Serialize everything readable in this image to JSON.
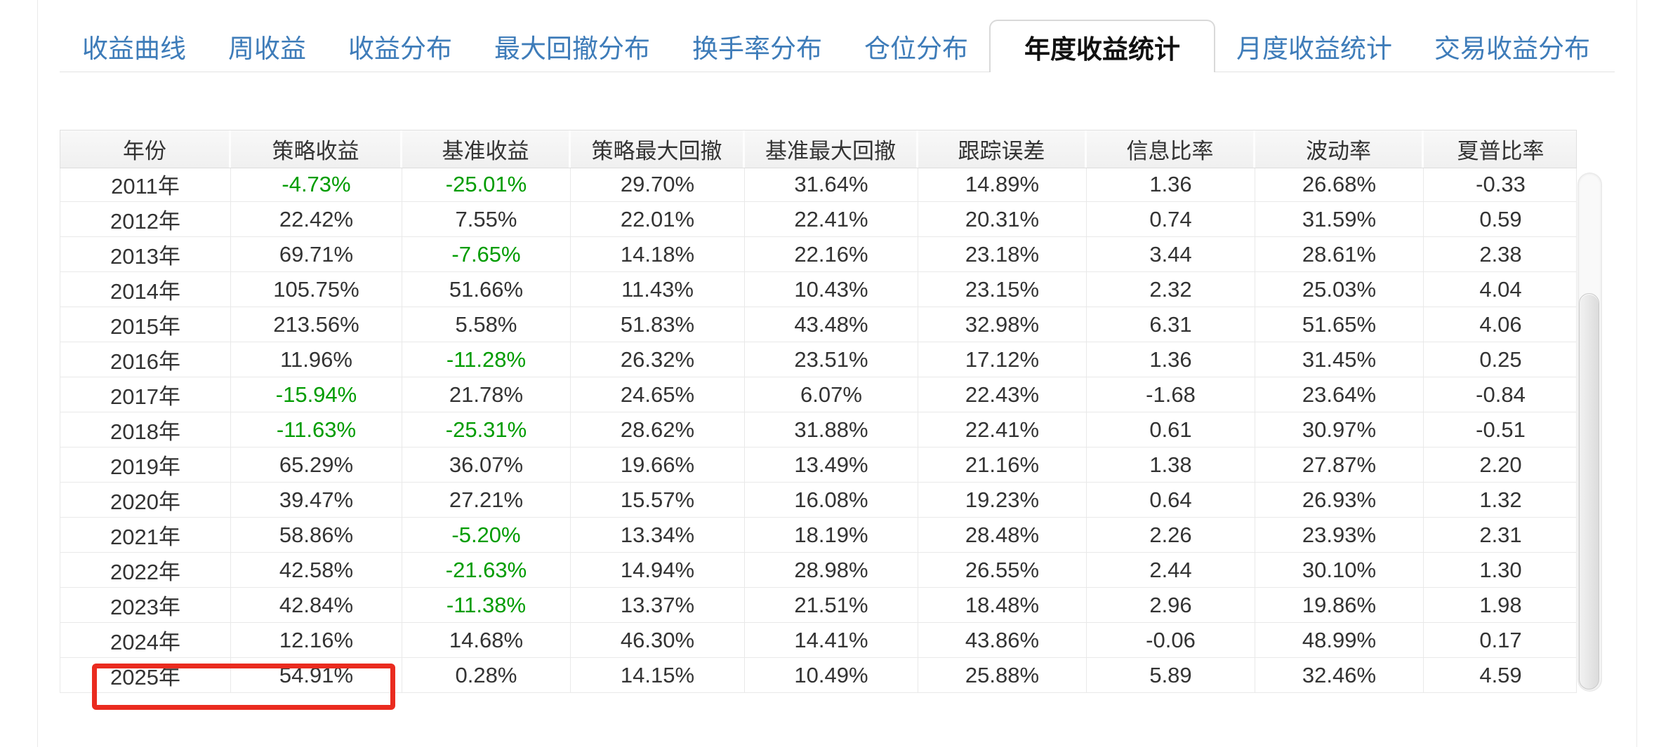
{
  "tabs": {
    "items": [
      {
        "label": "收益曲线",
        "active": false
      },
      {
        "label": "周收益",
        "active": false
      },
      {
        "label": "收益分布",
        "active": false
      },
      {
        "label": "最大回撤分布",
        "active": false
      },
      {
        "label": "换手率分布",
        "active": false
      },
      {
        "label": "仓位分布",
        "active": false
      },
      {
        "label": "年度收益统计",
        "active": true
      },
      {
        "label": "月度收益统计",
        "active": false
      },
      {
        "label": "交易收益分布",
        "active": false
      }
    ]
  },
  "table": {
    "columns": [
      "年份",
      "策略收益",
      "基准收益",
      "策略最大回撤",
      "基准最大回撤",
      "跟踪误差",
      "信息比率",
      "波动率",
      "夏普比率"
    ],
    "rows": [
      [
        "2011年",
        "-4.73%",
        "-25.01%",
        "29.70%",
        "31.64%",
        "14.89%",
        "1.36",
        "26.68%",
        "-0.33"
      ],
      [
        "2012年",
        "22.42%",
        "7.55%",
        "22.01%",
        "22.41%",
        "20.31%",
        "0.74",
        "31.59%",
        "0.59"
      ],
      [
        "2013年",
        "69.71%",
        "-7.65%",
        "14.18%",
        "22.16%",
        "23.18%",
        "3.44",
        "28.61%",
        "2.38"
      ],
      [
        "2014年",
        "105.75%",
        "51.66%",
        "11.43%",
        "10.43%",
        "23.15%",
        "2.32",
        "25.03%",
        "4.04"
      ],
      [
        "2015年",
        "213.56%",
        "5.58%",
        "51.83%",
        "43.48%",
        "32.98%",
        "6.31",
        "51.65%",
        "4.06"
      ],
      [
        "2016年",
        "11.96%",
        "-11.28%",
        "26.32%",
        "23.51%",
        "17.12%",
        "1.36",
        "31.45%",
        "0.25"
      ],
      [
        "2017年",
        "-15.94%",
        "21.78%",
        "24.65%",
        "6.07%",
        "22.43%",
        "-1.68",
        "23.64%",
        "-0.84"
      ],
      [
        "2018年",
        "-11.63%",
        "-25.31%",
        "28.62%",
        "31.88%",
        "22.41%",
        "0.61",
        "30.97%",
        "-0.51"
      ],
      [
        "2019年",
        "65.29%",
        "36.07%",
        "19.66%",
        "13.49%",
        "21.16%",
        "1.38",
        "27.87%",
        "2.20"
      ],
      [
        "2020年",
        "39.47%",
        "27.21%",
        "15.57%",
        "16.08%",
        "19.23%",
        "0.64",
        "26.93%",
        "1.32"
      ],
      [
        "2021年",
        "58.86%",
        "-5.20%",
        "13.34%",
        "18.19%",
        "28.48%",
        "2.26",
        "23.93%",
        "2.31"
      ],
      [
        "2022年",
        "42.58%",
        "-21.63%",
        "14.94%",
        "28.98%",
        "26.55%",
        "2.44",
        "30.10%",
        "1.30"
      ],
      [
        "2023年",
        "42.84%",
        "-11.38%",
        "13.37%",
        "21.51%",
        "18.48%",
        "2.96",
        "19.86%",
        "1.98"
      ],
      [
        "2024年",
        "12.16%",
        "14.68%",
        "46.30%",
        "14.41%",
        "43.86%",
        "-0.06",
        "48.99%",
        "0.17"
      ],
      [
        "2025年",
        "54.91%",
        "0.28%",
        "14.15%",
        "10.49%",
        "25.88%",
        "5.89",
        "32.46%",
        "4.59"
      ]
    ],
    "negative_green_columns": [
      1,
      2
    ]
  },
  "annotation": {
    "highlighted_row": "2025年",
    "highlighted_columns": [
      "年份",
      "策略收益"
    ],
    "color": "#ea2b1f"
  },
  "colors": {
    "tab_inactive": "#3e7cb9",
    "tab_active_text": "#111111",
    "cell_text": "#333333",
    "negative_green": "#009c00",
    "highlight_red": "#ea2b1f"
  }
}
